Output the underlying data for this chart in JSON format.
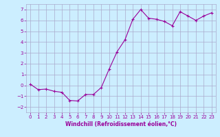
{
  "x": [
    0,
    1,
    2,
    3,
    4,
    5,
    6,
    7,
    8,
    9,
    10,
    11,
    12,
    13,
    14,
    15,
    16,
    17,
    18,
    19,
    20,
    21,
    22,
    23
  ],
  "y": [
    0.1,
    -0.4,
    -0.35,
    -0.55,
    -0.65,
    -1.4,
    -1.45,
    -0.85,
    -0.85,
    -0.2,
    1.5,
    3.1,
    4.2,
    6.1,
    7.0,
    6.2,
    6.1,
    5.9,
    5.5,
    6.8,
    6.4,
    6.0,
    6.4,
    6.7
  ],
  "line_color": "#990099",
  "marker": "+",
  "marker_size": 3,
  "bg_color": "#cceeff",
  "grid_color": "#aaaacc",
  "xlabel": "Windchill (Refroidissement éolien,°C)",
  "ylabel": "",
  "xlim": [
    -0.5,
    23.5
  ],
  "ylim": [
    -2.5,
    7.5
  ],
  "yticks": [
    -2,
    -1,
    0,
    1,
    2,
    3,
    4,
    5,
    6,
    7
  ],
  "xticks": [
    0,
    1,
    2,
    3,
    4,
    5,
    6,
    7,
    8,
    9,
    10,
    11,
    12,
    13,
    14,
    15,
    16,
    17,
    18,
    19,
    20,
    21,
    22,
    23
  ],
  "tick_color": "#990099",
  "label_fontsize": 5.5,
  "tick_fontsize": 5.0
}
